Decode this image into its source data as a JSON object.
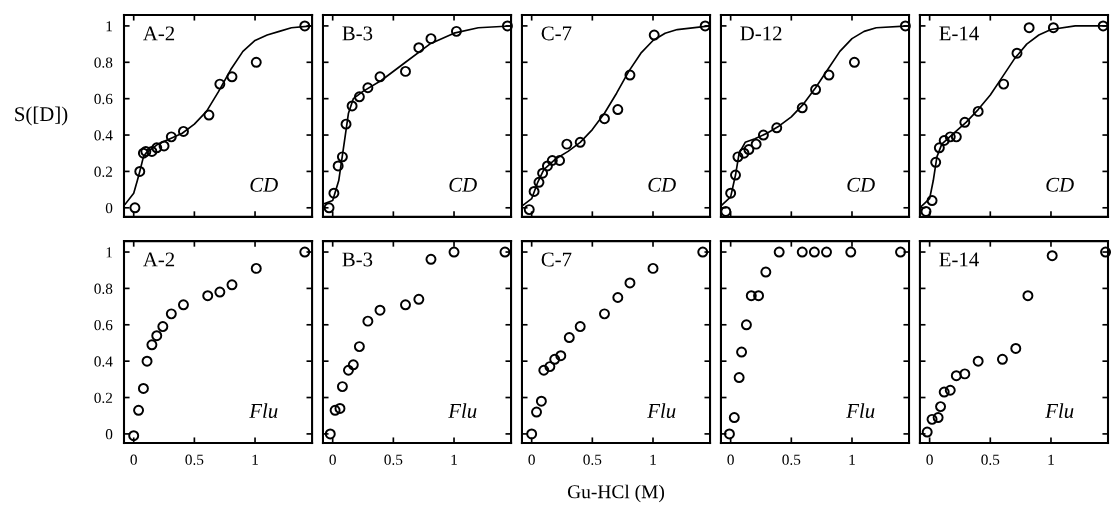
{
  "chart_data": [
    {
      "type": "scatter",
      "ylabel": "S([D])",
      "annotations": [
        "A-2",
        "CD"
      ],
      "marker": "circle",
      "tick_labels": "y",
      "xlim": [
        -0.08,
        1.47
      ],
      "ylim": [
        -0.05,
        1.06
      ],
      "xticks": [
        0,
        0.5,
        1
      ],
      "yticks": [
        0,
        0.2,
        0.4,
        0.6,
        0.8,
        1
      ],
      "series": [
        {
          "color": "#000000",
          "x": [
            0.01,
            0.05,
            0.08,
            0.1,
            0.15,
            0.19,
            0.25,
            0.31,
            0.41,
            0.62,
            0.71,
            0.81,
            1.01,
            1.41
          ],
          "values": [
            0,
            0.2,
            0.3,
            0.31,
            0.31,
            0.33,
            0.34,
            0.39,
            0.42,
            0.51,
            0.68,
            0.72,
            0.8,
            1.0
          ]
        },
        {
          "type": "line",
          "marker": "none",
          "color": "#000000",
          "x": [
            -0.07,
            0,
            0.03,
            0.05,
            0.08,
            0.1,
            0.2,
            0.3,
            0.4,
            0.5,
            0.6,
            0.7,
            0.8,
            0.9,
            1.0,
            1.1,
            1.2,
            1.3,
            1.47
          ],
          "values": [
            0.02,
            0.08,
            0.15,
            0.2,
            0.28,
            0.3,
            0.35,
            0.38,
            0.41,
            0.46,
            0.53,
            0.64,
            0.76,
            0.86,
            0.92,
            0.95,
            0.97,
            0.99,
            1.0
          ]
        }
      ]
    },
    {
      "type": "scatter",
      "annotations": [
        "B-3",
        "CD"
      ],
      "marker": "circle",
      "tick_labels": false,
      "xlim": [
        -0.08,
        1.47
      ],
      "ylim": [
        -0.05,
        1.06
      ],
      "xticks": [
        0,
        0.5,
        1
      ],
      "yticks": [
        0,
        0.2,
        0.4,
        0.6,
        0.8,
        1
      ],
      "series": [
        {
          "color": "#000000",
          "x": [
            -0.03,
            0.01,
            0.045,
            0.08,
            0.11,
            0.16,
            0.22,
            0.29,
            0.39,
            0.6,
            0.71,
            0.81,
            1.02,
            1.44
          ],
          "values": [
            0,
            0.08,
            0.23,
            0.28,
            0.46,
            0.56,
            0.61,
            0.66,
            0.72,
            0.75,
            0.88,
            0.93,
            0.97,
            1.0
          ]
        },
        {
          "type": "line",
          "marker": "none",
          "color": "#000000",
          "x": [
            -0.08,
            0,
            0.05,
            0.1,
            0.13,
            0.17,
            0.25,
            0.4,
            0.6,
            0.8,
            1.0,
            1.2,
            1.47
          ],
          "values": [
            0.02,
            0.04,
            0.15,
            0.38,
            0.52,
            0.6,
            0.64,
            0.7,
            0.8,
            0.9,
            0.96,
            0.99,
            1.0
          ]
        }
      ]
    },
    {
      "type": "scatter",
      "annotations": [
        "C-7",
        "CD"
      ],
      "marker": "circle",
      "tick_labels": false,
      "xlim": [
        -0.08,
        1.47
      ],
      "ylim": [
        -0.05,
        1.06
      ],
      "xticks": [
        0,
        0.5,
        1
      ],
      "yticks": [
        0,
        0.2,
        0.4,
        0.6,
        0.8,
        1
      ],
      "series": [
        {
          "color": "#000000",
          "x": [
            -0.02,
            0.02,
            0.06,
            0.09,
            0.13,
            0.17,
            0.23,
            0.29,
            0.4,
            0.6,
            0.71,
            0.81,
            1.01,
            1.43
          ],
          "values": [
            -0.01,
            0.09,
            0.14,
            0.19,
            0.23,
            0.26,
            0.26,
            0.35,
            0.36,
            0.49,
            0.54,
            0.73,
            0.95,
            1.0
          ]
        },
        {
          "type": "line",
          "marker": "none",
          "color": "#000000",
          "x": [
            -0.08,
            0,
            0.05,
            0.1,
            0.2,
            0.3,
            0.4,
            0.5,
            0.6,
            0.7,
            0.8,
            0.9,
            1.0,
            1.1,
            1.2,
            1.47
          ],
          "values": [
            0.01,
            0.05,
            0.14,
            0.21,
            0.27,
            0.31,
            0.36,
            0.43,
            0.52,
            0.63,
            0.75,
            0.85,
            0.92,
            0.96,
            0.98,
            1.0
          ]
        }
      ]
    },
    {
      "type": "scatter",
      "annotations": [
        "D-12",
        "CD"
      ],
      "marker": "circle",
      "tick_labels": false,
      "xlim": [
        -0.08,
        1.47
      ],
      "ylim": [
        -0.05,
        1.06
      ],
      "xticks": [
        0,
        0.5,
        1
      ],
      "yticks": [
        0,
        0.2,
        0.4,
        0.6,
        0.8,
        1
      ],
      "series": [
        {
          "color": "#000000",
          "x": [
            -0.04,
            0,
            0.04,
            0.06,
            0.11,
            0.15,
            0.21,
            0.27,
            0.38,
            0.59,
            0.7,
            0.81,
            1.02,
            1.44
          ],
          "values": [
            -0.02,
            0.08,
            0.18,
            0.28,
            0.3,
            0.32,
            0.35,
            0.4,
            0.44,
            0.55,
            0.65,
            0.73,
            0.8,
            1.0
          ]
        },
        {
          "type": "line",
          "marker": "none",
          "color": "#000000",
          "x": [
            -0.08,
            0,
            0.04,
            0.07,
            0.12,
            0.2,
            0.3,
            0.4,
            0.5,
            0.6,
            0.7,
            0.8,
            0.9,
            1.0,
            1.1,
            1.2,
            1.47
          ],
          "values": [
            0.01,
            0.06,
            0.18,
            0.3,
            0.36,
            0.38,
            0.41,
            0.45,
            0.5,
            0.57,
            0.66,
            0.76,
            0.86,
            0.93,
            0.97,
            0.99,
            1.0
          ]
        }
      ]
    },
    {
      "type": "scatter",
      "annotations": [
        "E-14",
        "CD"
      ],
      "marker": "circle",
      "tick_labels": false,
      "xlim": [
        -0.08,
        1.47
      ],
      "ylim": [
        -0.05,
        1.06
      ],
      "xticks": [
        0,
        0.5,
        1
      ],
      "yticks": [
        0,
        0.2,
        0.4,
        0.6,
        0.8,
        1
      ],
      "series": [
        {
          "color": "#000000",
          "x": [
            -0.03,
            0.02,
            0.05,
            0.08,
            0.12,
            0.17,
            0.22,
            0.29,
            0.4,
            0.61,
            0.72,
            0.82,
            1.02,
            1.43
          ],
          "values": [
            -0.02,
            0.04,
            0.25,
            0.33,
            0.37,
            0.39,
            0.39,
            0.47,
            0.53,
            0.68,
            0.85,
            0.99,
            0.99,
            1.0
          ]
        },
        {
          "type": "line",
          "marker": "none",
          "color": "#000000",
          "x": [
            -0.08,
            0,
            0.03,
            0.06,
            0.1,
            0.2,
            0.3,
            0.4,
            0.5,
            0.6,
            0.7,
            0.8,
            0.9,
            1.0,
            1.2,
            1.47
          ],
          "values": [
            0,
            0.05,
            0.15,
            0.28,
            0.35,
            0.41,
            0.47,
            0.54,
            0.62,
            0.72,
            0.82,
            0.9,
            0.95,
            0.98,
            1.0,
            1.0
          ]
        }
      ]
    },
    {
      "type": "scatter",
      "annotations": [
        "A-2",
        "Flu"
      ],
      "marker": "circle",
      "xlim": [
        -0.08,
        1.47
      ],
      "ylim": [
        -0.05,
        1.06
      ],
      "xticks": [
        0,
        0.5,
        1
      ],
      "yticks": [
        0,
        0.2,
        0.4,
        0.6,
        0.8,
        1
      ],
      "series": [
        {
          "color": "#000000",
          "x": [
            0,
            0.04,
            0.08,
            0.11,
            0.15,
            0.19,
            0.24,
            0.31,
            0.41,
            0.61,
            0.71,
            0.81,
            1.01,
            1.41
          ],
          "values": [
            -0.01,
            0.13,
            0.25,
            0.4,
            0.49,
            0.54,
            0.59,
            0.66,
            0.71,
            0.76,
            0.78,
            0.82,
            0.91,
            1.0
          ]
        }
      ]
    },
    {
      "type": "scatter",
      "annotations": [
        "B-3",
        "Flu"
      ],
      "marker": "circle",
      "tick_labels": "x",
      "xlim": [
        -0.08,
        1.47
      ],
      "ylim": [
        -0.05,
        1.06
      ],
      "xticks": [
        0,
        0.5,
        1
      ],
      "yticks": [
        0,
        0.2,
        0.4,
        0.6,
        0.8,
        1
      ],
      "series": [
        {
          "color": "#000000",
          "x": [
            -0.02,
            0.02,
            0.06,
            0.08,
            0.13,
            0.17,
            0.22,
            0.29,
            0.39,
            0.6,
            0.71,
            0.81,
            1.0,
            1.42
          ],
          "values": [
            0,
            0.13,
            0.14,
            0.26,
            0.35,
            0.38,
            0.48,
            0.62,
            0.68,
            0.71,
            0.74,
            0.96,
            1.0,
            1.0
          ]
        }
      ]
    },
    {
      "type": "scatter",
      "xlabel": "Gu-HCl (M)",
      "annotations": [
        "C-7",
        "Flu"
      ],
      "marker": "circle",
      "tick_labels": "x",
      "xlim": [
        -0.08,
        1.47
      ],
      "ylim": [
        -0.05,
        1.06
      ],
      "xticks": [
        0,
        0.5,
        1
      ],
      "yticks": [
        0,
        0.2,
        0.4,
        0.6,
        0.8,
        1
      ],
      "series": [
        {
          "color": "#000000",
          "x": [
            0,
            0.04,
            0.08,
            0.1,
            0.15,
            0.19,
            0.24,
            0.31,
            0.4,
            0.6,
            0.71,
            0.81,
            1.0,
            1.41
          ],
          "values": [
            0,
            0.12,
            0.18,
            0.35,
            0.37,
            0.41,
            0.43,
            0.53,
            0.59,
            0.66,
            0.75,
            0.83,
            0.91,
            1.0
          ]
        }
      ]
    },
    {
      "type": "scatter",
      "annotations": [
        "Flu"
      ],
      "marker": "circle",
      "tick_labels": "x",
      "xlim": [
        -0.08,
        1.47
      ],
      "ylim": [
        -0.05,
        1.06
      ],
      "xticks": [
        0,
        0.5,
        1
      ],
      "yticks": [
        0,
        0.2,
        0.4,
        0.6,
        0.8,
        1
      ],
      "series": [
        {
          "color": "#000000",
          "x": [
            -0.01,
            0.03,
            0.07,
            0.09,
            0.13,
            0.17,
            0.23,
            0.29,
            0.4,
            0.59,
            0.69,
            0.79,
            0.99,
            1.4
          ],
          "values": [
            0,
            0.09,
            0.31,
            0.45,
            0.6,
            0.76,
            0.76,
            0.89,
            1.0,
            1.0,
            1.0,
            1.0,
            1.0,
            1.0
          ]
        }
      ]
    },
    {
      "type": "scatter",
      "annotations": [
        "E-14",
        "Flu"
      ],
      "marker": "circle",
      "tick_labels": "x",
      "xlim": [
        -0.08,
        1.47
      ],
      "ylim": [
        -0.05,
        1.06
      ],
      "xticks": [
        0,
        0.5,
        1
      ],
      "yticks": [
        0,
        0.2,
        0.4,
        0.6,
        0.8,
        1
      ],
      "series": [
        {
          "color": "#000000",
          "x": [
            -0.02,
            0.02,
            0.07,
            0.09,
            0.12,
            0.17,
            0.22,
            0.29,
            0.4,
            0.6,
            0.71,
            0.81,
            1.01,
            1.45
          ],
          "values": [
            0.01,
            0.08,
            0.09,
            0.15,
            0.23,
            0.24,
            0.32,
            0.33,
            0.4,
            0.41,
            0.47,
            0.76,
            0.98,
            1.0
          ]
        }
      ]
    }
  ]
}
